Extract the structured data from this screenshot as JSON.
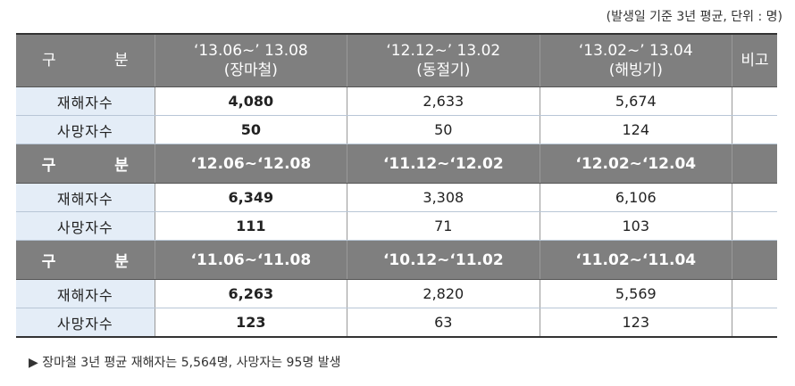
{
  "note": "(발생일 기준 3년 평균, 단위 : 명)",
  "table": {
    "sections": [
      {
        "header": [
          "구 분",
          [
            "‘13.06∼’ 13.08",
            "(장마철)"
          ],
          [
            "‘12.12∼’ 13.02",
            "(동절기)"
          ],
          [
            "‘13.02∼’ 13.04",
            "(해빙기)"
          ],
          "비고"
        ],
        "rows": [
          [
            "재해자수",
            "4,080",
            "2,633",
            "5,674"
          ],
          [
            "사망자수",
            "50",
            "50",
            "124"
          ]
        ]
      },
      {
        "header": [
          "구 분",
          "‘12.06~‘12.08",
          "‘11.12~‘12.02",
          "‘12.02~‘12.04"
        ],
        "rows": [
          [
            "재해자수",
            "6,349",
            "3,308",
            "6,106"
          ],
          [
            "사망자수",
            "111",
            "71",
            "103"
          ]
        ]
      },
      {
        "header": [
          "구 분",
          "‘11.06~‘11.08",
          "‘10.12~‘11.02",
          "‘11.02~‘11.04"
        ],
        "rows": [
          [
            "재해자수",
            "6,263",
            "2,820",
            "5,569"
          ],
          [
            "사망자수",
            "123",
            "63",
            "123"
          ]
        ]
      }
    ]
  },
  "footer": "▶ 장마철 3년 평균 재해자는 5,564명, 사망자는 95명 발생"
}
